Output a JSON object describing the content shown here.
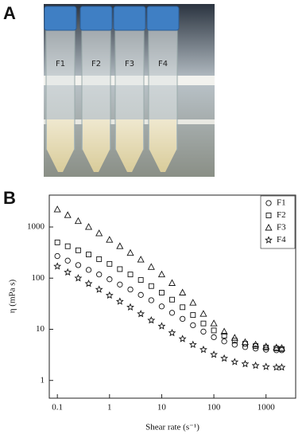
{
  "panels": [
    "A",
    "B"
  ],
  "photo": {
    "tube_labels": [
      "F1",
      "F2",
      "F3",
      "F4"
    ]
  },
  "chart_data": {
    "type": "scatter",
    "x_label": "Shear rate (s⁻¹)",
    "y_label": "η (mPa s)",
    "log_x": true,
    "log_y": true,
    "legend": "top-right",
    "x": [
      0.1,
      0.158,
      0.251,
      0.398,
      0.631,
      1,
      1.58,
      2.51,
      3.98,
      6.31,
      10,
      15.8,
      25.1,
      39.8,
      63.1,
      100,
      158,
      251,
      398,
      631,
      1000,
      1580,
      2000
    ],
    "series": [
      {
        "name": "F1",
        "color": "#111111",
        "marker": "circle",
        "values": [
          270,
          220,
          180,
          145,
          118,
          95,
          75,
          60,
          47,
          37,
          28,
          21,
          16,
          12,
          9,
          7,
          5.8,
          5,
          4.5,
          4.2,
          4,
          3.9,
          3.9
        ]
      },
      {
        "name": "F2",
        "color": "#111111",
        "marker": "square",
        "values": [
          500,
          420,
          350,
          290,
          235,
          190,
          150,
          118,
          92,
          70,
          52,
          38,
          27,
          19,
          13,
          9.5,
          7.5,
          6,
          5.2,
          4.7,
          4.4,
          4.2,
          4.1
        ]
      },
      {
        "name": "F3",
        "color": "#111111",
        "marker": "triangle",
        "values": [
          2200,
          1700,
          1300,
          1000,
          750,
          560,
          420,
          310,
          230,
          165,
          118,
          80,
          52,
          33,
          20,
          13,
          9,
          6.8,
          5.6,
          5,
          4.6,
          4.4,
          4.3
        ]
      },
      {
        "name": "F4",
        "color": "#111111",
        "marker": "star",
        "values": [
          170,
          130,
          100,
          78,
          60,
          46,
          35,
          27,
          20,
          15,
          11.5,
          8.5,
          6.5,
          5,
          4,
          3.2,
          2.7,
          2.3,
          2.1,
          1.95,
          1.85,
          1.8,
          1.8
        ]
      }
    ],
    "xlim": [
      0.07,
      3700
    ],
    "ylim": [
      0.45,
      4200
    ],
    "xticks": [
      0.1,
      1,
      10,
      100,
      1000
    ],
    "yticks": [
      1,
      10,
      100,
      1000
    ]
  }
}
